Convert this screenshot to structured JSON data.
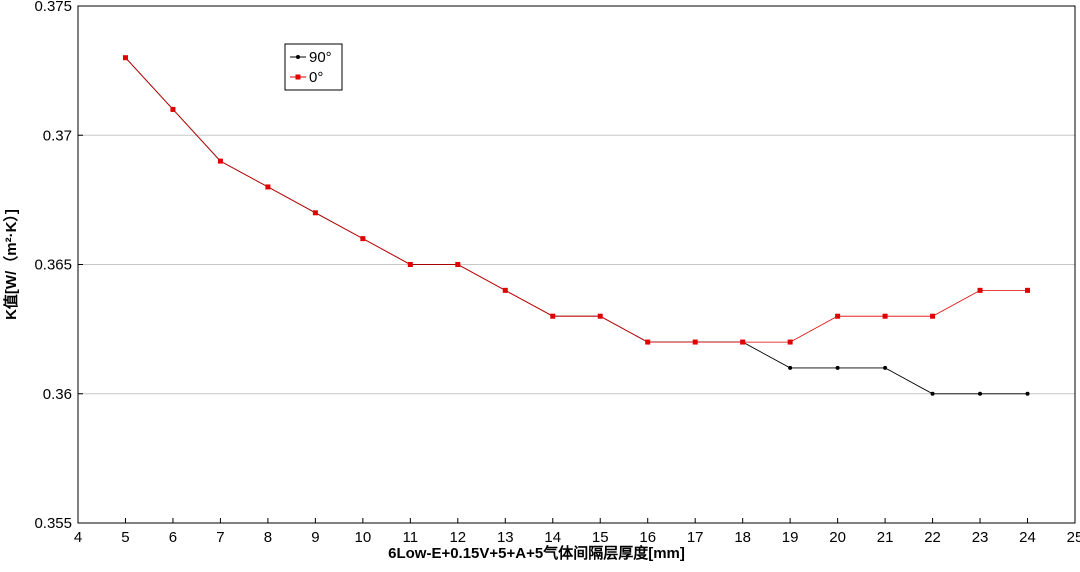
{
  "chart_data": {
    "type": "line",
    "title": "",
    "xlabel": "6Low-E+0.15V+5+A+5气体间隔层厚度[mm]",
    "ylabel": "K值[W/（m²·K）]",
    "xlim": [
      4,
      25
    ],
    "ylim": [
      0.355,
      0.375
    ],
    "x_ticks": [
      "4",
      "5",
      "6",
      "7",
      "8",
      "9",
      "10",
      "11",
      "12",
      "13",
      "14",
      "15",
      "16",
      "17",
      "18",
      "19",
      "20",
      "21",
      "22",
      "23",
      "24",
      "25"
    ],
    "y_ticks": [
      "0.355",
      "0.36",
      "0.365",
      "0.37",
      "0.375"
    ],
    "grid": "horizontal",
    "legend_position": "top-left",
    "x": [
      5,
      6,
      7,
      8,
      9,
      10,
      11,
      12,
      13,
      14,
      15,
      16,
      17,
      18,
      19,
      20,
      21,
      22,
      23,
      24
    ],
    "series": [
      {
        "name": "90°",
        "color": "#000000",
        "marker": "circle",
        "values": [
          0.373,
          0.371,
          0.369,
          0.368,
          0.367,
          0.366,
          0.365,
          0.365,
          0.364,
          0.363,
          0.363,
          0.362,
          0.362,
          0.362,
          0.361,
          0.361,
          0.361,
          0.36,
          0.36,
          0.36
        ]
      },
      {
        "name": "0°",
        "color": "#e00000",
        "marker": "square",
        "values": [
          0.373,
          0.371,
          0.369,
          0.368,
          0.367,
          0.366,
          0.365,
          0.365,
          0.364,
          0.363,
          0.363,
          0.362,
          0.362,
          0.362,
          0.362,
          0.363,
          0.363,
          0.363,
          0.364,
          0.364
        ]
      }
    ]
  }
}
